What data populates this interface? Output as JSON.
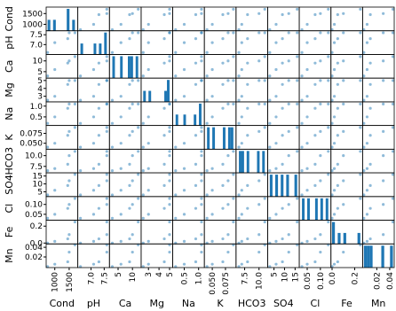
{
  "chart_data": {
    "type": "scatter_matrix",
    "color": "#1f77b4",
    "variables": [
      {
        "name": "Cond",
        "values": [
          750,
          1000,
          1450,
          1500,
          1700
        ],
        "lim": [
          700,
          1800
        ],
        "ticks": [
          1000,
          1500
        ]
      },
      {
        "name": "pH",
        "values": [
          6.6,
          7.1,
          7.3,
          7.6,
          7.6
        ],
        "lim": [
          6.5,
          7.7
        ],
        "ticks": [
          {
            "value": 7,
            "label": "7.0"
          },
          7.5
        ]
      },
      {
        "name": "Ca",
        "values": [
          3,
          6,
          9,
          10,
          12
        ],
        "lim": [
          2,
          13
        ],
        "ticks": [
          5,
          10
        ]
      },
      {
        "name": "Mg",
        "values": [
          2.5,
          3,
          4.5,
          5,
          5
        ],
        "lim": [
          2.3,
          5.3
        ],
        "ticks": [
          3,
          4,
          5
        ]
      },
      {
        "name": "Na",
        "values": [
          0.2,
          0.5,
          0.9,
          1.1,
          1.1
        ],
        "lim": [
          0.1,
          1.2
        ],
        "ticks": [
          0.5,
          {
            "value": 1,
            "label": "1.0"
          }
        ]
      },
      {
        "name": "K",
        "values": [
          0.04,
          0.05,
          0.07,
          0.08,
          0.09
        ],
        "lim": [
          0.035,
          0.095
        ],
        "ticks": [
          {
            "value": 0.05,
            "label": "0.050"
          },
          0.075
        ]
      },
      {
        "name": "HCO3",
        "values": [
          6.5,
          7,
          8,
          10,
          11
        ],
        "lim": [
          6,
          11.5
        ],
        "ticks": [
          7.5,
          {
            "value": 10,
            "label": "10.0"
          }
        ]
      },
      {
        "name": "SO4",
        "values": [
          3,
          6,
          9,
          12,
          16
        ],
        "lim": [
          2,
          17
        ],
        "ticks": [
          5,
          10,
          15
        ]
      },
      {
        "name": "Cl",
        "values": [
          0.03,
          0.05,
          0.08,
          0.1,
          0.13
        ],
        "lim": [
          0.02,
          0.14
        ],
        "ticks": [
          0.05,
          {
            "value": 0.1,
            "label": "0.10"
          }
        ]
      },
      {
        "name": "Fe",
        "values": [
          0,
          0.02,
          0.05,
          0.1,
          0.25
        ],
        "lim": [
          -0.01,
          0.27
        ],
        "ticks": [
          {
            "value": 0,
            "label": "0.0"
          },
          0.2
        ]
      },
      {
        "name": "Mn",
        "values": [
          0,
          0.005,
          0.01,
          0.03,
          0.045
        ],
        "lim": [
          -0.002,
          0.047
        ],
        "ticks": [
          0.02,
          0.04
        ]
      }
    ]
  }
}
